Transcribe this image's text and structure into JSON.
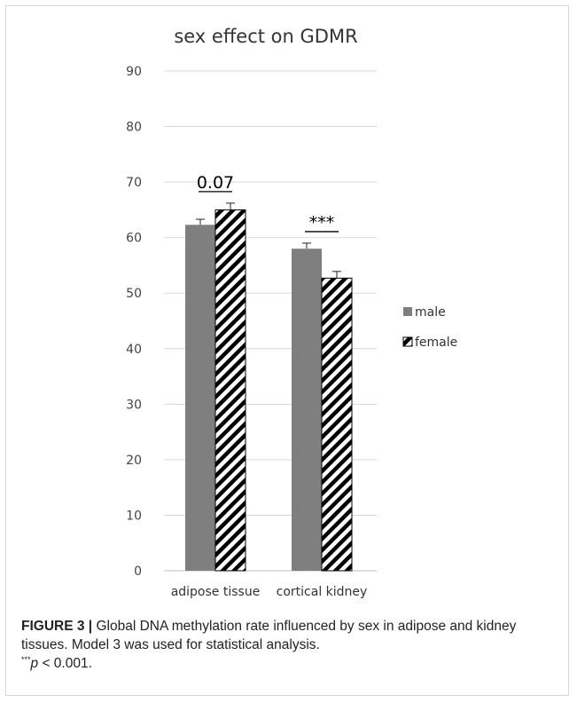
{
  "chart_data": {
    "type": "bar",
    "title": "sex effect on GDMR",
    "xlabel": "",
    "ylabel": "",
    "categories": [
      "adipose tissue",
      "cortical kidney"
    ],
    "series": [
      {
        "name": "male",
        "values": [
          62.3,
          58.0
        ],
        "errors": [
          1.0,
          1.0
        ],
        "fill": "#7f7f7f",
        "pattern": "solid"
      },
      {
        "name": "female",
        "values": [
          65.0,
          52.7
        ],
        "errors": [
          1.2,
          1.2
        ],
        "fill": "#ffffff",
        "pattern": "diagonal-stripes"
      }
    ],
    "ylim": [
      0,
      90
    ],
    "yticks": [
      0,
      10,
      20,
      30,
      40,
      50,
      60,
      70,
      80,
      90
    ],
    "grid": true,
    "legend_position": "right",
    "annotations": [
      {
        "category": "adipose tissue",
        "text": "0.07"
      },
      {
        "category": "cortical kidney",
        "text": "***"
      }
    ]
  },
  "caption": {
    "label": "FIGURE 3 |",
    "text": "Global DNA methylation rate influenced by sex in adipose and kidney tissues. Model 3 was used for statistical analysis.",
    "footnote_marker": "***",
    "footnote_text": "p < 0.001."
  }
}
